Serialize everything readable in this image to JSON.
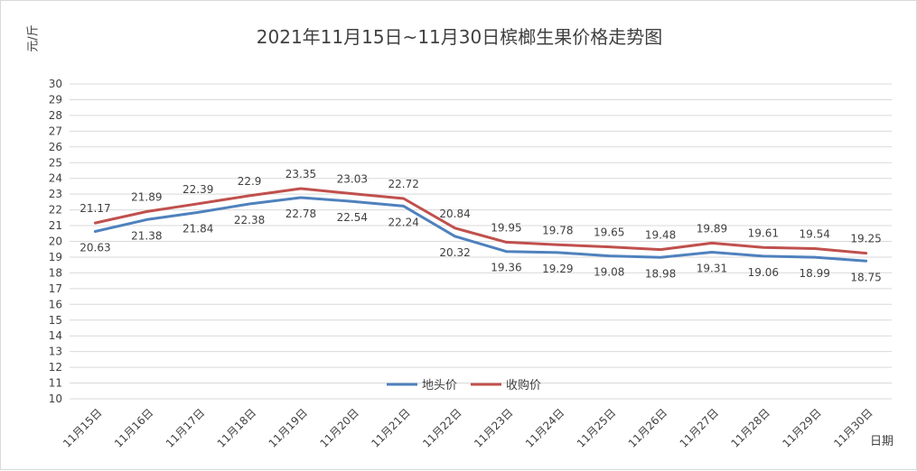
{
  "chart_data": {
    "type": "line",
    "title": "2021年11月15日~11月30日槟榔生果价格走势图",
    "ylabel": "元/斤",
    "xlabel": "日期",
    "ylim": [
      10,
      30
    ],
    "ytick_step": 1,
    "grid": true,
    "legend_position": "bottom-center",
    "categories": [
      "11月15日",
      "11月16日",
      "11月17日",
      "11月18日",
      "11月19日",
      "11月20日",
      "11月21日",
      "11月22日",
      "11月23日",
      "11月24日",
      "11月25日",
      "11月26日",
      "11月27日",
      "11月28日",
      "11月29日",
      "11月30日"
    ],
    "series": [
      {
        "name": "地头价",
        "color": "#4f81bd",
        "values": [
          20.63,
          21.38,
          21.84,
          22.38,
          22.78,
          22.54,
          22.24,
          20.32,
          19.36,
          19.29,
          19.08,
          18.98,
          19.31,
          19.06,
          18.99,
          18.75
        ]
      },
      {
        "name": "收购价",
        "color": "#c0504d",
        "values": [
          21.17,
          21.89,
          22.39,
          22.9,
          23.35,
          23.03,
          22.72,
          20.84,
          19.95,
          19.78,
          19.65,
          19.48,
          19.89,
          19.61,
          19.54,
          19.25
        ]
      }
    ]
  }
}
